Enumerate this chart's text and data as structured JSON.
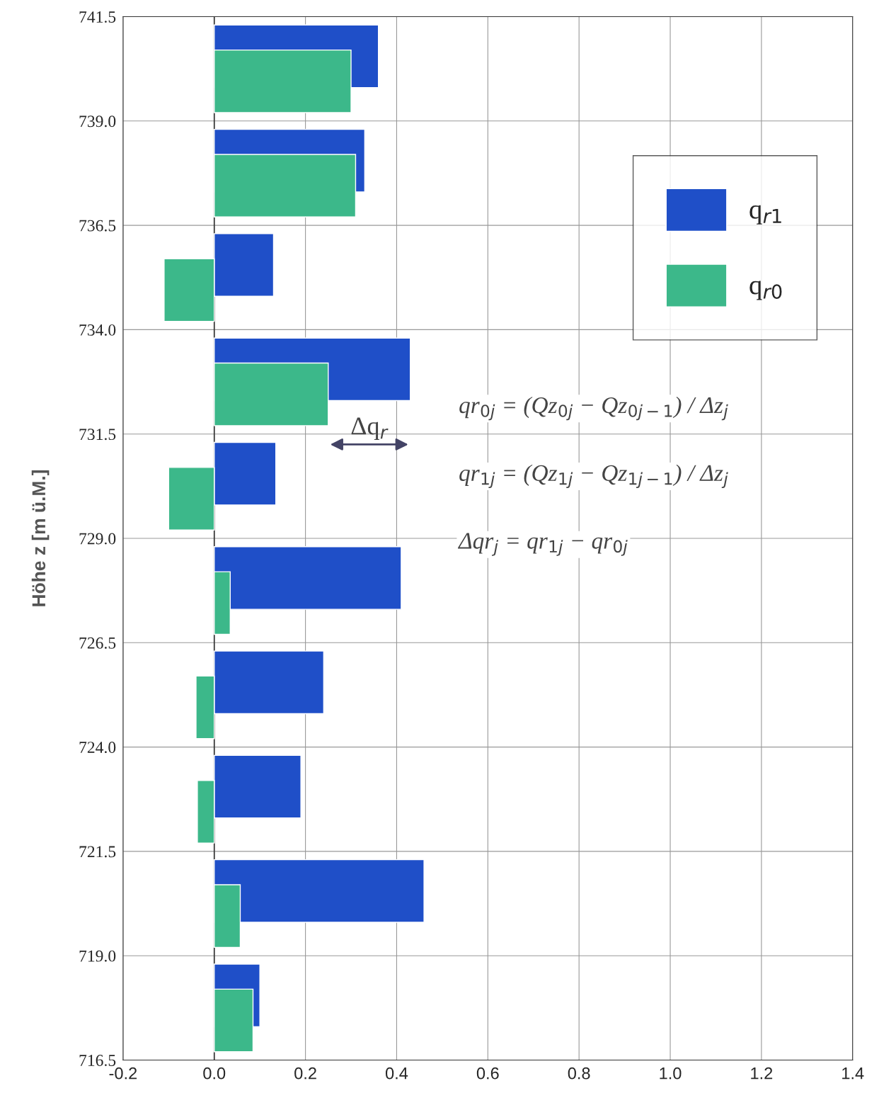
{
  "chart_data": {
    "type": "bar",
    "orientation": "horizontal",
    "ylabel": "Höhe z [m ü.M.]",
    "x": [
      740.25,
      737.75,
      735.25,
      732.75,
      730.25,
      727.75,
      725.25,
      722.75,
      720.25,
      717.75
    ],
    "series": [
      {
        "name": "q$_{r1}$",
        "color": "#1f4fc8",
        "values": [
          0.36,
          0.33,
          0.13,
          0.43,
          0.135,
          0.41,
          0.24,
          0.19,
          0.46,
          0.1
        ]
      },
      {
        "name": "q$_{r0}$",
        "color": "#3cb88a",
        "values": [
          0.3,
          0.31,
          -0.11,
          0.25,
          -0.1,
          0.035,
          -0.04,
          -0.037,
          0.057,
          0.085
        ]
      }
    ],
    "xlim": [
      -0.2,
      1.4
    ],
    "xticks": [
      -0.2,
      {
        "value": 0,
        "label": "0.0"
      },
      0.2,
      0.4,
      0.6,
      0.8,
      {
        "value": 1,
        "label": "1.0"
      },
      1.2,
      1.4
    ],
    "ylim": [
      716.5,
      741.5
    ],
    "yticks": [
      716.5,
      {
        "value": 719,
        "label": "719.0"
      },
      721.5,
      {
        "value": 724,
        "label": "724.0"
      },
      726.5,
      {
        "value": 729,
        "label": "729.0"
      },
      731.5,
      {
        "value": 734,
        "label": "734.0"
      },
      736.5,
      {
        "value": 739,
        "label": "739.0"
      },
      741.5
    ],
    "grid": true,
    "legend": "top right",
    "annotations": [
      "Δq$_{r}$",
      "qr$_{0j}$ = (Qz$_{0j}$ − Qz$_{0j−1}$) / Δz$_{j}$",
      "qr$_{1j}$ = (Qz$_{1j}$ − Qz$_{1j−1}$) / Δz$_{j}$",
      "Δqr$_{j}$ = qr$_{1j}$ − qr$_{0j}$"
    ]
  }
}
